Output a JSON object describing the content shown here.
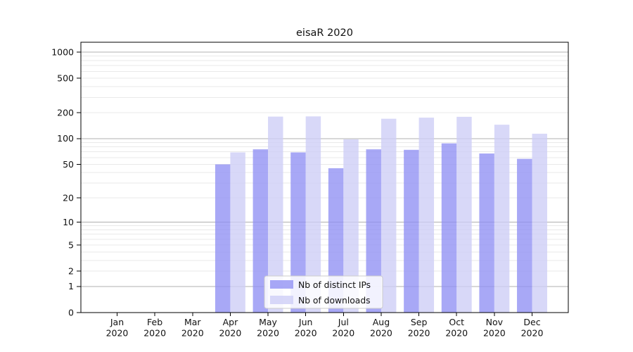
{
  "figure": {
    "background_color": "#ffffff",
    "border_color": "#000000"
  },
  "chart_data": {
    "type": "bar",
    "title": "eisaR 2020",
    "xlabel": "",
    "ylabel": "",
    "scale": "log1p",
    "ylim": [
      0,
      1300
    ],
    "yticks": [
      1000,
      500,
      200,
      100,
      50,
      20,
      10,
      5,
      2,
      1,
      0
    ],
    "months": [
      "Jan",
      "Feb",
      "Mar",
      "Apr",
      "May",
      "Jun",
      "Jul",
      "Aug",
      "Sep",
      "Oct",
      "Nov",
      "Dec"
    ],
    "x_year": "2020",
    "categories": [
      "Jan 2020",
      "Feb 2020",
      "Mar 2020",
      "Apr 2020",
      "May 2020",
      "Jun 2020",
      "Jul 2020",
      "Aug 2020",
      "Sep 2020",
      "Oct 2020",
      "Nov 2020",
      "Dec 2020"
    ],
    "series": [
      {
        "name": "Nb of distinct IPs",
        "key": "distinct-ips",
        "color": "#8f8ff4",
        "opacity": 0.78,
        "values": [
          0,
          0,
          0,
          50,
          75,
          69,
          45,
          75,
          74,
          88,
          67,
          58
        ]
      },
      {
        "name": "Nb of downloads",
        "key": "downloads",
        "color": "#cdcdf6",
        "opacity": 0.78,
        "values": [
          0,
          0,
          0,
          69,
          180,
          181,
          98,
          170,
          175,
          179,
          145,
          114
        ]
      }
    ],
    "grid": {
      "major_color": "#b0b0b0",
      "minor_color": "#e9e9e9",
      "major_values": [
        1,
        10,
        100,
        1000
      ]
    },
    "legend": {
      "position": "lower center",
      "background": "#ffffff",
      "border_color": "#cccccc"
    }
  }
}
